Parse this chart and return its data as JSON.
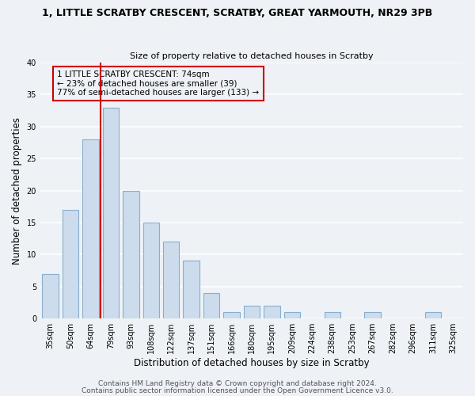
{
  "title": "1, LITTLE SCRATBY CRESCENT, SCRATBY, GREAT YARMOUTH, NR29 3PB",
  "subtitle": "Size of property relative to detached houses in Scratby",
  "xlabel": "Distribution of detached houses by size in Scratby",
  "ylabel": "Number of detached properties",
  "bar_labels": [
    "35sqm",
    "50sqm",
    "64sqm",
    "79sqm",
    "93sqm",
    "108sqm",
    "122sqm",
    "137sqm",
    "151sqm",
    "166sqm",
    "180sqm",
    "195sqm",
    "209sqm",
    "224sqm",
    "238sqm",
    "253sqm",
    "267sqm",
    "282sqm",
    "296sqm",
    "311sqm",
    "325sqm"
  ],
  "bar_values": [
    7,
    17,
    28,
    33,
    20,
    15,
    12,
    9,
    4,
    1,
    2,
    2,
    1,
    0,
    1,
    0,
    1,
    0,
    0,
    1,
    0
  ],
  "bar_color": "#ccdcec",
  "bar_edge_color": "#88aece",
  "ylim": [
    0,
    40
  ],
  "yticks": [
    0,
    5,
    10,
    15,
    20,
    25,
    30,
    35,
    40
  ],
  "redline_index": 3,
  "annotation_text": "1 LITTLE SCRATBY CRESCENT: 74sqm\n← 23% of detached houses are smaller (39)\n77% of semi-detached houses are larger (133) →",
  "annotation_box_edgecolor": "#cc0000",
  "redline_color": "#cc0000",
  "footer1": "Contains HM Land Registry data © Crown copyright and database right 2024.",
  "footer2": "Contains public sector information licensed under the Open Government Licence v3.0.",
  "background_color": "#eef2f6",
  "grid_color": "#ffffff",
  "title_fontsize": 9,
  "subtitle_fontsize": 8,
  "axis_label_fontsize": 8.5,
  "tick_fontsize": 7,
  "annotation_fontsize": 7.5,
  "footer_fontsize": 6.5
}
